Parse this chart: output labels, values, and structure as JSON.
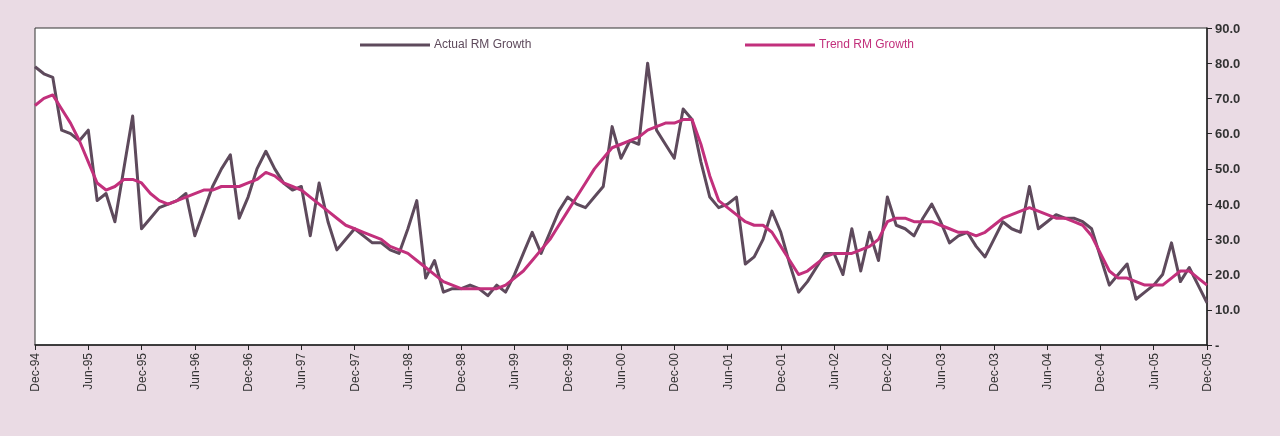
{
  "chart_data": {
    "type": "line",
    "categories": [
      "Dec-94",
      null,
      null,
      null,
      null,
      null,
      "Jun-95",
      null,
      null,
      null,
      null,
      null,
      "Dec-95",
      null,
      null,
      null,
      null,
      null,
      "Jun-96",
      null,
      null,
      null,
      null,
      null,
      "Dec-96",
      null,
      null,
      null,
      null,
      null,
      "Jun-97",
      null,
      null,
      null,
      null,
      null,
      "Dec-97",
      null,
      null,
      null,
      null,
      null,
      "Jun-98",
      null,
      null,
      null,
      null,
      null,
      "Dec-98",
      null,
      null,
      null,
      null,
      null,
      "Jun-99",
      null,
      null,
      null,
      null,
      null,
      "Dec-99",
      null,
      null,
      null,
      null,
      null,
      "Jun-00",
      null,
      null,
      null,
      null,
      null,
      "Dec-00",
      null,
      null,
      null,
      null,
      null,
      "Jun-01",
      null,
      null,
      null,
      null,
      null,
      "Dec-01",
      null,
      null,
      null,
      null,
      null,
      "Jun-02",
      null,
      null,
      null,
      null,
      null,
      "Dec-02",
      null,
      null,
      null,
      null,
      null,
      "Jun-03",
      null,
      null,
      null,
      null,
      null,
      "Dec-03",
      null,
      null,
      null,
      null,
      null,
      "Jun-04",
      null,
      null,
      null,
      null,
      null,
      "Dec-04",
      null,
      null,
      null,
      null,
      null,
      "Jun-05",
      null,
      null,
      null,
      null,
      null,
      "Dec-05"
    ],
    "series": [
      {
        "name": "Actual RM Growth",
        "color": "#5e4a5c",
        "values": [
          79,
          77,
          76,
          61,
          60,
          58,
          61,
          41,
          43,
          35,
          50,
          65,
          33,
          36,
          39,
          40,
          41,
          43,
          31,
          38,
          45,
          50,
          54,
          36,
          42,
          50,
          55,
          50,
          46,
          44,
          45,
          31,
          46,
          35,
          27,
          30,
          33,
          31,
          29,
          29,
          27,
          26,
          33,
          41,
          19,
          24,
          15,
          16,
          16,
          17,
          16,
          14,
          17,
          15,
          20,
          26,
          32,
          26,
          32,
          38,
          42,
          40,
          39,
          42,
          45,
          62,
          53,
          58,
          57,
          80,
          61,
          57,
          53,
          67,
          64,
          52,
          42,
          39,
          40,
          42,
          23,
          25,
          30,
          38,
          32,
          23,
          15,
          18,
          22,
          26,
          26,
          20,
          33,
          21,
          32,
          24,
          42,
          34,
          33,
          31,
          36,
          40,
          35,
          29,
          31,
          32,
          28,
          25,
          30,
          35,
          33,
          32,
          45,
          33,
          35,
          37,
          36,
          36,
          35,
          33,
          25,
          17,
          20,
          23,
          13,
          15,
          17,
          20,
          29,
          18,
          22,
          17,
          12
        ]
      },
      {
        "name": "Trend RM Growth",
        "color": "#c2307c",
        "values": [
          68,
          70,
          71,
          67,
          63,
          58,
          52,
          46,
          44,
          45,
          47,
          47,
          46,
          43,
          41,
          40,
          41,
          42,
          43,
          44,
          44,
          45,
          45,
          45,
          46,
          47,
          49,
          48,
          46,
          45,
          44,
          42,
          40,
          38,
          36,
          34,
          33,
          32,
          31,
          30,
          28,
          27,
          26,
          24,
          22,
          20,
          18,
          17,
          16,
          16,
          16,
          16,
          16,
          17,
          19,
          21,
          24,
          27,
          30,
          34,
          38,
          42,
          46,
          50,
          53,
          56,
          57,
          58,
          59,
          61,
          62,
          63,
          63,
          64,
          64,
          57,
          48,
          41,
          39,
          37,
          35,
          34,
          34,
          32,
          28,
          24,
          20,
          21,
          23,
          25,
          26,
          26,
          26,
          27,
          28,
          30,
          35,
          36,
          36,
          35,
          35,
          35,
          34,
          33,
          32,
          32,
          31,
          32,
          34,
          36,
          37,
          38,
          39,
          38,
          37,
          36,
          36,
          35,
          34,
          31,
          26,
          21,
          19,
          19,
          18,
          17,
          17,
          17,
          19,
          21,
          21,
          19,
          17
        ]
      }
    ],
    "ylim": [
      0,
      90
    ],
    "yticks": [
      {
        "value": 0,
        "label": "-"
      },
      {
        "value": 10,
        "label": "10.0"
      },
      {
        "value": 20,
        "label": "20.0"
      },
      {
        "value": 30,
        "label": "30.0"
      },
      {
        "value": 40,
        "label": "40.0"
      },
      {
        "value": 50,
        "label": "50.0"
      },
      {
        "value": 60,
        "label": "60.0"
      },
      {
        "value": 70,
        "label": "70.0"
      },
      {
        "value": 80,
        "label": "80.0"
      },
      {
        "value": 90,
        "label": "90.0"
      }
    ],
    "grid": false,
    "legend": "top",
    "marker": "none"
  }
}
